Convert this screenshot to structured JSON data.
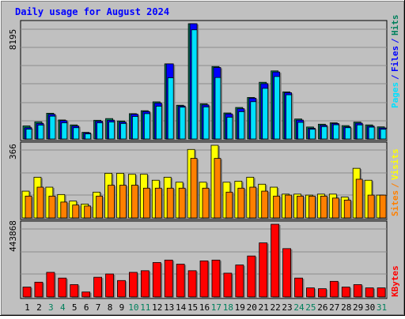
{
  "chart_data": [
    {
      "type": "bar",
      "title": "Daily usage for August 2024",
      "categories": [
        "1",
        "2",
        "3",
        "4",
        "5",
        "6",
        "7",
        "8",
        "9",
        "10",
        "11",
        "12",
        "13",
        "14",
        "15",
        "16",
        "17",
        "18",
        "19",
        "20",
        "21",
        "22",
        "23",
        "24",
        "25",
        "26",
        "27",
        "28",
        "29",
        "30",
        "31"
      ],
      "weekend_days": [
        3,
        4,
        10,
        11,
        17,
        18,
        24,
        25,
        31
      ],
      "ylabel_value": "8195",
      "ylim": [
        0,
        8195
      ],
      "grid": true,
      "right_labels": [
        "Pages",
        "Files",
        "Hits"
      ],
      "series": [
        {
          "name": "Hits",
          "values": [
            930,
            1220,
            1830,
            1350,
            1000,
            470,
            1330,
            1450,
            1280,
            1800,
            2010,
            2640,
            5340,
            2400,
            8195,
            2500,
            5150,
            1850,
            2240,
            2950,
            4030,
            4840,
            3350,
            1420,
            850,
            1050,
            1150,
            950,
            1200,
            1000,
            860
          ]
        },
        {
          "name": "Files",
          "values": [
            800,
            1100,
            1750,
            1300,
            920,
            430,
            1260,
            1330,
            1200,
            1760,
            1950,
            2550,
            5340,
            2340,
            8195,
            2420,
            5080,
            1780,
            2150,
            2900,
            3930,
            4760,
            3290,
            1340,
            760,
            970,
            1100,
            860,
            1120,
            910,
            780
          ]
        },
        {
          "name": "Pages",
          "values": [
            700,
            990,
            1620,
            1150,
            800,
            360,
            1150,
            1210,
            1100,
            1600,
            1800,
            2330,
            4350,
            2260,
            7760,
            2280,
            4370,
            1550,
            1940,
            2650,
            3600,
            4440,
            3140,
            1180,
            690,
            880,
            1010,
            800,
            1000,
            840,
            690
          ]
        }
      ]
    },
    {
      "type": "bar",
      "ylabel_value": "366",
      "ylim": [
        0,
        366
      ],
      "grid": true,
      "right_labels": [
        "Sites",
        "Visits"
      ],
      "series": [
        {
          "name": "Visits",
          "values": [
            135,
            205,
            155,
            118,
            85,
            70,
            130,
            225,
            225,
            220,
            220,
            190,
            205,
            180,
            345,
            180,
            366,
            180,
            185,
            205,
            170,
            155,
            120,
            120,
            115,
            120,
            120,
            105,
            250,
            190,
            115
          ]
        },
        {
          "name": "Sites",
          "values": [
            110,
            155,
            110,
            80,
            65,
            60,
            110,
            165,
            165,
            165,
            150,
            150,
            150,
            150,
            300,
            150,
            300,
            130,
            150,
            155,
            135,
            110,
            115,
            110,
            110,
            110,
            100,
            90,
            195,
            115,
            115
          ]
        }
      ]
    },
    {
      "type": "bar",
      "ylabel_value": "443868",
      "ylim": [
        0,
        443868
      ],
      "grid": true,
      "right_labels": [
        "KBytes"
      ],
      "series": [
        {
          "name": "KBytes",
          "values": [
            60000,
            90000,
            150000,
            115000,
            75000,
            30000,
            120000,
            140000,
            100000,
            150000,
            160000,
            210000,
            225000,
            200000,
            160000,
            220000,
            225000,
            145000,
            195000,
            250000,
            330000,
            443868,
            295000,
            115000,
            55000,
            50000,
            95000,
            60000,
            75000,
            55000,
            55000
          ]
        }
      ]
    }
  ],
  "colors": {
    "hits": "#00805c",
    "files": "#0000ff",
    "pages": "#00e0ff",
    "visits": "#ffff00",
    "sites": "#ff8000",
    "kbytes": "#ff0000",
    "title": "#0000ff",
    "weekend": "#00805c",
    "weekday": "#000000"
  }
}
